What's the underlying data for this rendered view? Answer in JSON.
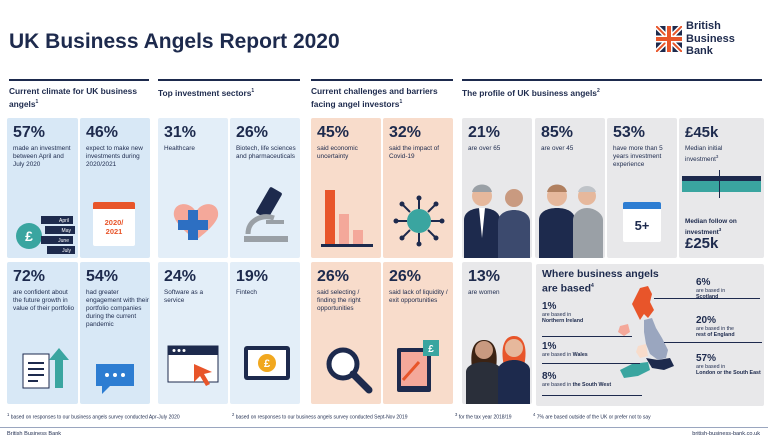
{
  "title": "UK Business Angels Report 2020",
  "logo": {
    "text": "British\nBusiness\nBank"
  },
  "sections": {
    "climate": {
      "title": "Current climate for UK business angels",
      "note": "1"
    },
    "sectors": {
      "title": "Top investment sectors",
      "note": "1"
    },
    "challenges": {
      "title": "Current challenges and barriers facing angel investors",
      "note": "1"
    },
    "profile": {
      "title": "The profile of UK business angels",
      "note": "2"
    }
  },
  "climate_cards": [
    {
      "pct": "57%",
      "desc": "made an investment between April and July 2020"
    },
    {
      "pct": "46%",
      "desc": "expect to make new investments during 2020/2021"
    },
    {
      "pct": "72%",
      "desc": "are confident about the future growth in value of their portfolio"
    },
    {
      "pct": "54%",
      "desc": "had greater engagement with their portfolio companies during the current pandemic"
    }
  ],
  "calendar_months": [
    "April",
    "May",
    "June",
    "July"
  ],
  "calendar_year": "2020/\n2021",
  "sector_cards": [
    {
      "pct": "31%",
      "desc": "Healthcare"
    },
    {
      "pct": "26%",
      "desc": "Biotech, life sciences and pharmaceuticals"
    },
    {
      "pct": "24%",
      "desc": "Software as a service"
    },
    {
      "pct": "19%",
      "desc": "Fintech"
    }
  ],
  "challenge_cards": [
    {
      "pct": "45%",
      "desc": "said economic uncertainty"
    },
    {
      "pct": "32%",
      "desc": "said the impact of Covid-19"
    },
    {
      "pct": "26%",
      "desc": "said selecting / finding the right opportunities"
    },
    {
      "pct": "26%",
      "desc": "said lack of liquidity / exit opportunities"
    }
  ],
  "profile_cards": [
    {
      "pct": "21%",
      "desc": "are over 65"
    },
    {
      "pct": "85%",
      "desc": "are over 45"
    },
    {
      "pct": "53%",
      "desc": "have more than 5 years investment experience"
    },
    {
      "pct": "13%",
      "desc": "are women"
    }
  ],
  "experience_icon": "5+",
  "investment": {
    "initial_amount": "£45k",
    "initial_label": "Median initial investment",
    "initial_note": "3",
    "follow_label": "Median follow on investment",
    "follow_note": "3",
    "follow_amount": "£25k"
  },
  "map": {
    "title": "Where business angels are based",
    "note": "4",
    "regions": [
      {
        "pct": "1%",
        "pre": "are based in",
        "name": "Northern Ireland"
      },
      {
        "pct": "1%",
        "pre": "are based in",
        "name": "Wales"
      },
      {
        "pct": "8%",
        "pre": "are based in",
        "name": "the South West"
      },
      {
        "pct": "6%",
        "pre": "are based in",
        "name": "Scotland"
      },
      {
        "pct": "20%",
        "pre": "are based in the",
        "name": "rest of England"
      },
      {
        "pct": "57%",
        "pre": "are based in",
        "name": "London or the South East"
      }
    ]
  },
  "footnotes": [
    {
      "num": "1",
      "text": "based on responses to our business angels survey conducted Apr-July 2020"
    },
    {
      "num": "2",
      "text": "based on responses to our business angels survey conducted Sept-Nov 2019"
    },
    {
      "num": "3",
      "text": "for the tax year 2018/19"
    },
    {
      "num": "4",
      "text": "7% are based outside of the UK or prefer not to say"
    }
  ],
  "bottom": {
    "left": "British Business Bank",
    "right": "british-business-bank.co.uk"
  },
  "colors": {
    "navy": "#1d2a4d",
    "blue_card": "#d8e8f6",
    "peach_card": "#f8dccb",
    "orange": "#e8552a",
    "teal": "#3aa5a0"
  }
}
